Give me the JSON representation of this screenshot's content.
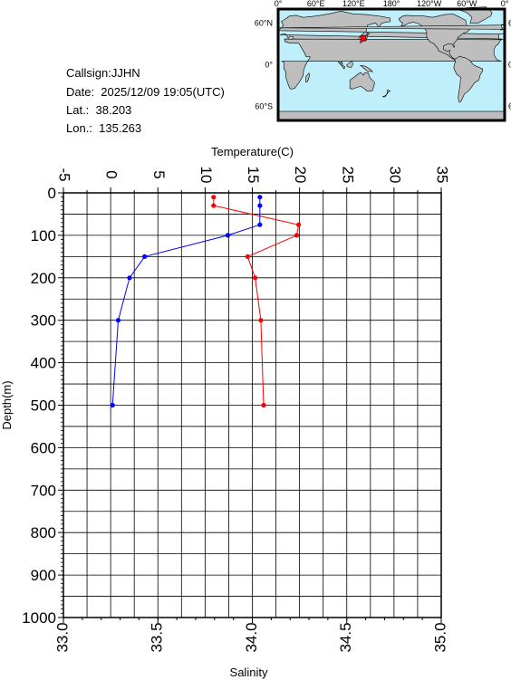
{
  "station": {
    "callsign_line": "Callsign:JJHN",
    "date_line": "Date:  2025/12/09 19:05(UTC)",
    "lat_line": "Lat.:  38.203",
    "lon_line": "Lon.:  135.263"
  },
  "map": {
    "top_tick_labels": [
      "0°",
      "60°E",
      "120°E",
      "180°",
      "120°W",
      "60°W",
      "0°"
    ],
    "right_tick_labels": [
      "60°N",
      "0°",
      "60°S"
    ],
    "ocean_color": "#bfeffa",
    "land_color": "#bebebe",
    "marker_color": "#ff0000",
    "marker_position": {
      "lat": 38.203,
      "lon": 135.263
    }
  },
  "chart_data": {
    "type": "line",
    "title": "",
    "temperature_label": "Temperature(C)",
    "salinity_label": "Salinity",
    "depth_label": "Depth(m)",
    "temperature_axis": {
      "range": [
        -5,
        35
      ],
      "ticks": [
        "-5",
        "0",
        "5",
        "10",
        "15",
        "20",
        "25",
        "30",
        "35"
      ]
    },
    "salinity_axis": {
      "range": [
        33.0,
        35.0
      ],
      "ticks": [
        "33.0",
        "33.5",
        "34.0",
        "34.5",
        "35.0"
      ]
    },
    "depth_axis": {
      "range": [
        0,
        1000
      ],
      "inverted": true,
      "ticks": [
        "0",
        "100",
        "200",
        "300",
        "400",
        "500",
        "600",
        "700",
        "800",
        "900",
        "1000"
      ]
    },
    "grid": true,
    "series": [
      {
        "color": "#ff0000",
        "axis": "temperature",
        "depth": [
          10,
          30,
          75,
          100,
          150,
          200,
          300,
          500
        ],
        "values": [
          10.9,
          10.9,
          19.9,
          19.7,
          14.5,
          15.3,
          15.9,
          16.2
        ]
      },
      {
        "color": "#0000ff",
        "axis": "salinity",
        "depth": [
          10,
          30,
          75,
          100,
          150,
          200,
          300,
          500
        ],
        "values": [
          34.04,
          34.04,
          34.04,
          33.87,
          33.43,
          33.35,
          33.29,
          33.26
        ]
      }
    ]
  }
}
